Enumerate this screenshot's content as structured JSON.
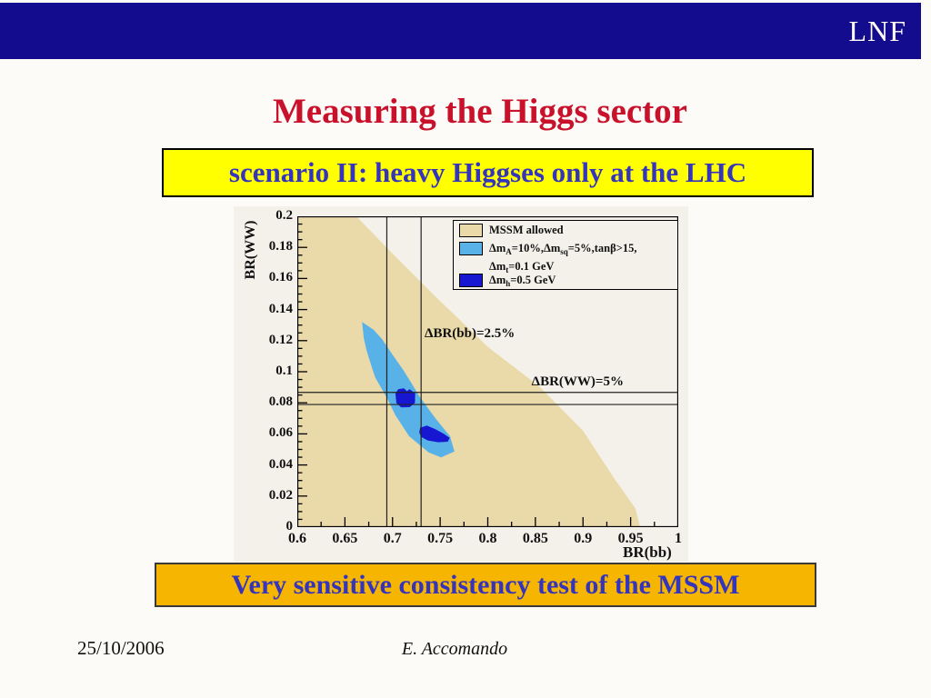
{
  "banner": {
    "logo": "LNF"
  },
  "title": "Measuring the Higgs sector",
  "scenario_banner": "scenario II: heavy Higgses only at the LHC",
  "conclusion_banner": "Very sensitive consistency test of the MSSM",
  "footer": {
    "date": "25/10/2006",
    "author": "E. Accomando"
  },
  "colors": {
    "top_banner": "#130c8e",
    "title_red": "#c9112b",
    "banner_yellow": "#ffff00",
    "banner_gold": "#f5b500",
    "banner_text_blue": "#3434bd",
    "mssm_tan": "#ead9a9",
    "band_light_blue": "#58b2e8",
    "blob_dark_blue": "#1717d2",
    "plot_bg": "#f3f1ea"
  },
  "chart_data": {
    "type": "area",
    "title": "",
    "xlabel": "BR(bb)",
    "ylabel": "BR(WW)",
    "xlim": [
      0.6,
      1.0
    ],
    "ylim": [
      0,
      0.2
    ],
    "grid": false,
    "legend_position": "top-right",
    "x_major_ticks": [
      0.6,
      0.65,
      0.7,
      0.75,
      0.8,
      0.85,
      0.9,
      0.95,
      1.0
    ],
    "x_tick_labels": [
      "0.6",
      "0.65",
      "0.7",
      "0.75",
      "0.8",
      "0.85",
      "0.9",
      "0.95",
      "1"
    ],
    "x_minor_step": 0.025,
    "y_major_ticks": [
      0.2,
      0.18,
      0.16,
      0.14,
      0.12,
      0.1,
      0.08,
      0.06,
      0.04,
      0.02,
      0
    ],
    "y_tick_labels": [
      "0.2",
      "0.18",
      "0.16",
      "0.14",
      "0.12",
      "0.1",
      "0.08",
      "0.06",
      "0.04",
      "0.02",
      "0"
    ],
    "y_minor_step": 0.005,
    "regions": [
      {
        "id": "mssm-allowed",
        "label": "MSSM allowed",
        "color": "#ead9a9",
        "points": [
          [
            0.6,
            0.2
          ],
          [
            0.662,
            0.2
          ],
          [
            0.7,
            0.176
          ],
          [
            0.744,
            0.149
          ],
          [
            0.8,
            0.116
          ],
          [
            0.854,
            0.0905
          ],
          [
            0.9,
            0.062
          ],
          [
            0.932,
            0.032
          ],
          [
            0.955,
            0.012
          ],
          [
            0.96,
            0.0
          ],
          [
            0.6,
            0.0
          ]
        ]
      },
      {
        "id": "delta-band",
        "label": "dmA=10%, dmsq=5%, tanb>15, dmt=0.1 GeV",
        "color": "#58b2e8",
        "points": [
          [
            0.668,
            0.132
          ],
          [
            0.68,
            0.127
          ],
          [
            0.689,
            0.121
          ],
          [
            0.7,
            0.111
          ],
          [
            0.711,
            0.1013
          ],
          [
            0.72,
            0.0925
          ],
          [
            0.7286,
            0.0838
          ],
          [
            0.745,
            0.07
          ],
          [
            0.7604,
            0.0585
          ],
          [
            0.765,
            0.0487
          ],
          [
            0.751,
            0.0449
          ],
          [
            0.738,
            0.048
          ],
          [
            0.7174,
            0.0585
          ],
          [
            0.703,
            0.072
          ],
          [
            0.6936,
            0.0838
          ],
          [
            0.682,
            0.096
          ],
          [
            0.679,
            0.1013
          ],
          [
            0.673,
            0.113
          ],
          [
            0.67,
            0.121
          ]
        ]
      },
      {
        "id": "dmh-blob-1",
        "label": "dmh=0.5 GeV",
        "color": "#1717d2",
        "points": [
          [
            0.7031,
            0.086
          ],
          [
            0.706,
            0.0888
          ],
          [
            0.712,
            0.0893
          ],
          [
            0.715,
            0.0875
          ],
          [
            0.718,
            0.0888
          ],
          [
            0.7238,
            0.086
          ],
          [
            0.7235,
            0.08
          ],
          [
            0.718,
            0.0772
          ],
          [
            0.709,
            0.077
          ],
          [
            0.704,
            0.08
          ]
        ]
      },
      {
        "id": "dmh-blob-2",
        "label": "dmh=0.5 GeV",
        "color": "#1717d2",
        "points": [
          [
            0.729,
            0.064
          ],
          [
            0.736,
            0.0653
          ],
          [
            0.745,
            0.063
          ],
          [
            0.754,
            0.06
          ],
          [
            0.76,
            0.0575
          ],
          [
            0.758,
            0.055
          ],
          [
            0.748,
            0.0546
          ],
          [
            0.737,
            0.0558
          ],
          [
            0.73,
            0.058
          ],
          [
            0.728,
            0.061
          ]
        ]
      }
    ],
    "reference_lines": [
      {
        "orient": "v",
        "x": 0.694
      },
      {
        "orient": "v",
        "x": 0.73
      },
      {
        "orient": "h",
        "y": 0.0867
      },
      {
        "orient": "h",
        "y": 0.0789
      }
    ],
    "annotations": [
      {
        "text": "ΔBR(bb)=2.5%",
        "x": 0.7337,
        "y": 0.124
      },
      {
        "text": "ΔBR(WW)=5%",
        "x": 0.846,
        "y": 0.093
      }
    ],
    "legend": {
      "entries": [
        {
          "swatch": "#ead9a9",
          "lines": [
            [
              {
                "t": "MSSM allowed"
              }
            ]
          ]
        },
        {
          "swatch": "#58b2e8",
          "lines": [
            [
              {
                "t": "Δm"
              },
              {
                "t": "A",
                "sub": true
              },
              {
                "t": "=10%,Δm"
              },
              {
                "t": "sq",
                "sub": true
              },
              {
                "t": "=5%,tanβ>15,"
              }
            ],
            [
              {
                "t": "Δm"
              },
              {
                "t": "t",
                "sub": true
              },
              {
                "t": "=0.1 GeV"
              }
            ]
          ]
        },
        {
          "swatch": "#1717d2",
          "lines": [
            [
              {
                "t": "Δm"
              },
              {
                "t": "h",
                "sub": true
              },
              {
                "t": "=0.5 GeV"
              }
            ]
          ]
        }
      ]
    }
  }
}
